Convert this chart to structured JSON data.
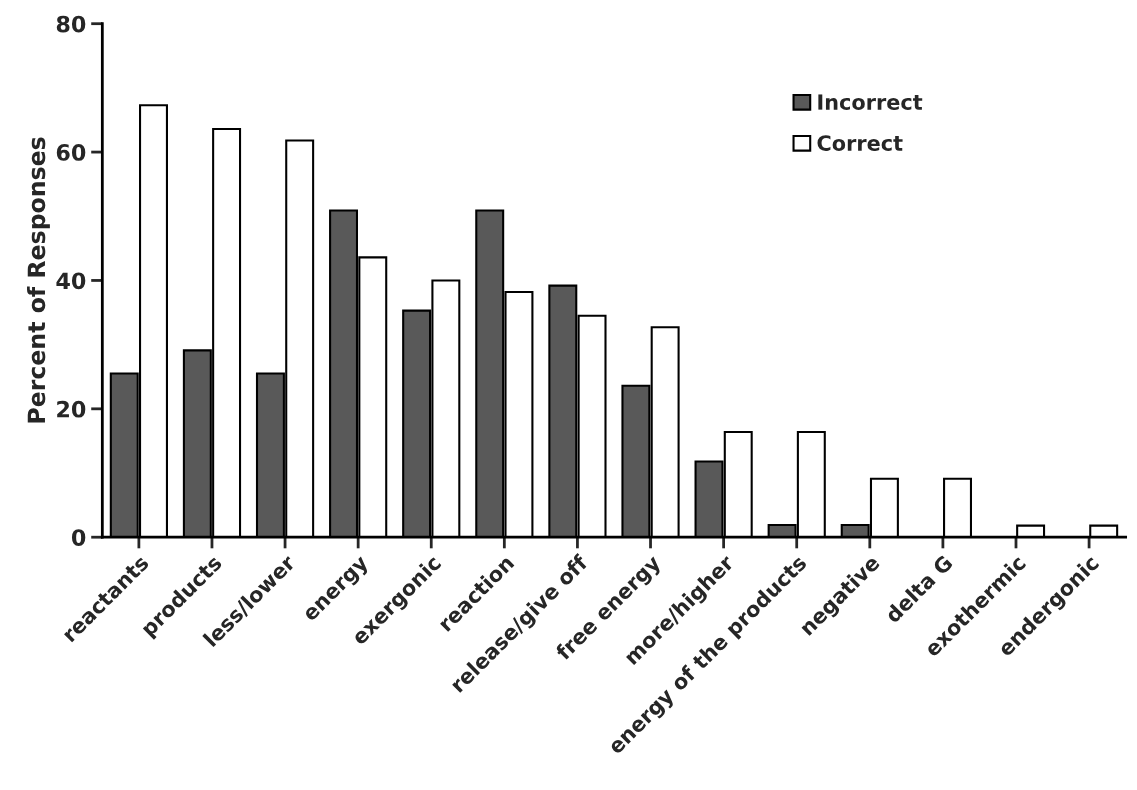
{
  "chart_data": {
    "type": "bar",
    "ylabel": "Percent of Responses",
    "categories": [
      "reactants",
      "products",
      "less/lower",
      "energy",
      "exergonic",
      "reaction",
      "release/give off",
      "free energy",
      "more/higher",
      "energy of the products",
      "negative",
      "delta G",
      "exothermic",
      "endergonic"
    ],
    "series": [
      {
        "name": "Incorrect",
        "color": "#595959",
        "values": [
          25.5,
          29.1,
          25.5,
          50.9,
          35.3,
          50.9,
          39.2,
          23.6,
          11.8,
          1.9,
          1.9,
          0,
          0,
          0
        ]
      },
      {
        "name": "Correct",
        "color": "#ffffff",
        "values": [
          67.3,
          63.6,
          61.8,
          43.6,
          40.0,
          38.2,
          34.5,
          32.7,
          16.4,
          16.4,
          9.1,
          9.1,
          1.8,
          1.8
        ]
      }
    ],
    "ylim": [
      0,
      80
    ],
    "yticks": [
      0,
      20,
      40,
      60,
      80
    ],
    "grid": false,
    "legend": "top right"
  }
}
